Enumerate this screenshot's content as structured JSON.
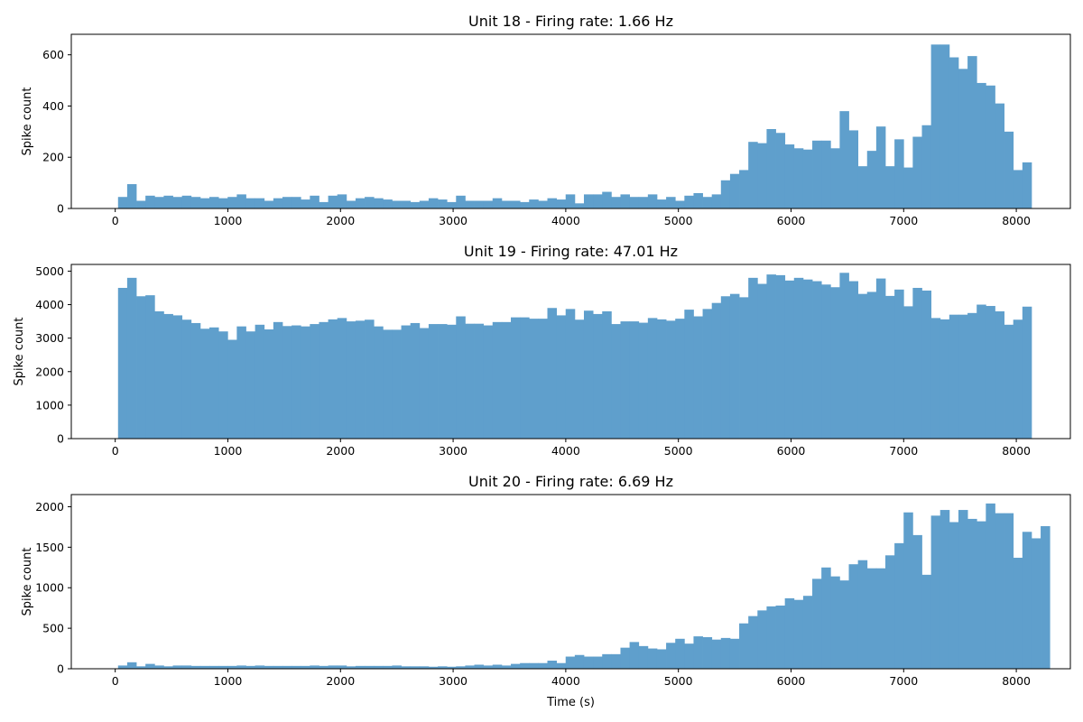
{
  "chart_data": [
    {
      "type": "bar",
      "title": "Unit 18 - Firing rate: 1.66 Hz",
      "xlabel": "",
      "ylabel": "Spike count",
      "xlim": [
        -390,
        8480
      ],
      "ylim": [
        0,
        680
      ],
      "x_ticks": [
        0,
        1000,
        2000,
        3000,
        4000,
        5000,
        6000,
        7000,
        8000
      ],
      "y_ticks": [
        0,
        200,
        400,
        600
      ],
      "bin_start": 25,
      "bin_width": 81.1,
      "color": "#5f9fcc",
      "values": [
        45,
        95,
        30,
        50,
        45,
        50,
        45,
        50,
        45,
        40,
        45,
        40,
        45,
        55,
        40,
        40,
        30,
        40,
        45,
        45,
        35,
        50,
        25,
        50,
        55,
        30,
        40,
        45,
        40,
        35,
        30,
        30,
        25,
        30,
        40,
        35,
        25,
        50,
        30,
        30,
        30,
        40,
        30,
        30,
        25,
        35,
        30,
        40,
        35,
        55,
        20,
        55,
        55,
        65,
        45,
        55,
        45,
        45,
        55,
        35,
        45,
        30,
        50,
        60,
        45,
        55,
        110,
        135,
        150,
        260,
        255,
        310,
        295,
        250,
        235,
        230,
        265,
        265,
        235,
        380,
        305,
        165,
        225,
        320,
        165,
        270,
        160,
        280,
        325,
        640,
        640,
        590,
        545,
        595,
        490,
        480,
        410,
        300,
        150,
        180
      ]
    },
    {
      "type": "bar",
      "title": "Unit 19 - Firing rate: 47.01 Hz",
      "xlabel": "",
      "ylabel": "Spike count",
      "xlim": [
        -390,
        8480
      ],
      "ylim": [
        0,
        5200
      ],
      "x_ticks": [
        0,
        1000,
        2000,
        3000,
        4000,
        5000,
        6000,
        7000,
        8000
      ],
      "y_ticks": [
        0,
        1000,
        2000,
        3000,
        4000,
        5000
      ],
      "bin_start": 25,
      "bin_width": 81.1,
      "color": "#5f9fcc",
      "values": [
        4500,
        4800,
        4250,
        4280,
        3800,
        3720,
        3680,
        3550,
        3450,
        3280,
        3320,
        3200,
        2950,
        3350,
        3200,
        3400,
        3260,
        3480,
        3360,
        3380,
        3350,
        3420,
        3480,
        3560,
        3600,
        3500,
        3520,
        3550,
        3350,
        3250,
        3250,
        3380,
        3450,
        3300,
        3420,
        3420,
        3400,
        3650,
        3430,
        3430,
        3380,
        3480,
        3480,
        3620,
        3620,
        3580,
        3580,
        3900,
        3680,
        3870,
        3550,
        3820,
        3720,
        3800,
        3420,
        3500,
        3500,
        3460,
        3600,
        3560,
        3520,
        3580,
        3850,
        3650,
        3870,
        4050,
        4250,
        4320,
        4220,
        4800,
        4620,
        4900,
        4880,
        4720,
        4800,
        4750,
        4700,
        4600,
        4520,
        4950,
        4700,
        4320,
        4380,
        4780,
        4260,
        4450,
        3950,
        4500,
        4420,
        3600,
        3560,
        3700,
        3700,
        3750,
        4000,
        3960,
        3800,
        3400,
        3550,
        3940
      ]
    },
    {
      "type": "bar",
      "title": "Unit 20 - Firing rate: 6.69 Hz",
      "xlabel": "Time (s)",
      "ylabel": "Spike count",
      "xlim": [
        -390,
        8480
      ],
      "ylim": [
        0,
        2150
      ],
      "x_ticks": [
        0,
        1000,
        2000,
        3000,
        4000,
        5000,
        6000,
        7000,
        8000
      ],
      "y_ticks": [
        0,
        500,
        1000,
        1500,
        2000
      ],
      "bin_start": 25,
      "bin_width": 81.1,
      "color": "#5f9fcc",
      "values": [
        40,
        80,
        30,
        60,
        40,
        30,
        40,
        40,
        35,
        35,
        35,
        35,
        35,
        40,
        35,
        40,
        35,
        35,
        35,
        35,
        35,
        40,
        35,
        40,
        40,
        30,
        35,
        35,
        35,
        35,
        40,
        30,
        30,
        30,
        25,
        30,
        25,
        30,
        40,
        50,
        40,
        50,
        40,
        60,
        70,
        70,
        70,
        100,
        70,
        150,
        170,
        150,
        150,
        180,
        180,
        260,
        330,
        280,
        250,
        240,
        320,
        370,
        310,
        400,
        390,
        360,
        380,
        370,
        560,
        650,
        720,
        770,
        780,
        870,
        850,
        900,
        1110,
        1250,
        1140,
        1090,
        1290,
        1340,
        1240,
        1240,
        1400,
        1550,
        1930,
        1650,
        1160,
        1890,
        1960,
        1810,
        1960,
        1850,
        1820,
        2040,
        1920,
        1920,
        1370,
        1690,
        1610,
        1760
      ]
    }
  ]
}
